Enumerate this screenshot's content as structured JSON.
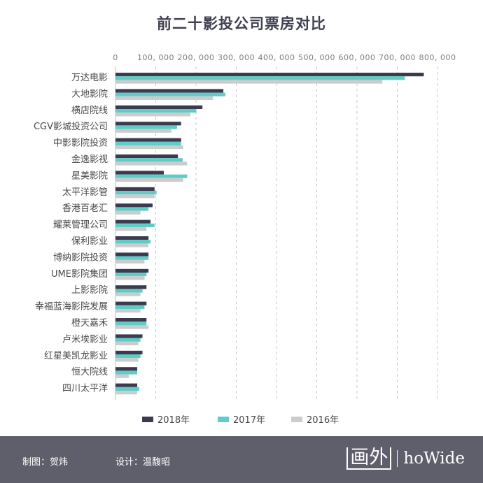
{
  "chart_data": {
    "type": "bar",
    "orientation": "horizontal",
    "title": "前二十影投公司票房对比",
    "xlabel": "",
    "ylabel": "",
    "xlim": [
      0,
      800000
    ],
    "grid": true,
    "tick_labels": [
      "0",
      "100, 000",
      "200, 000",
      "300, 000",
      "400, 000",
      "500, 000",
      "600, 000",
      "700, 000",
      "800, 000"
    ],
    "tick_values": [
      0,
      100000,
      200000,
      300000,
      400000,
      500000,
      600000,
      700000,
      800000
    ],
    "categories": [
      "万达电影",
      "大地影院",
      "横店院线",
      "CGV影城投资公司",
      "中影影院投资",
      "金逸影视",
      "星美影院",
      "太平洋影管",
      "香港百老汇",
      "耀莱管理公司",
      "保利影业",
      "博纳影院投资",
      "UME影院集团",
      "上影影院",
      "幸福蓝海影院发展",
      "橙天嘉禾",
      "卢米埃影业",
      "红星美凯龙影业",
      "恒大院线",
      "四川太平洋"
    ],
    "series": [
      {
        "name": "2018年",
        "color": "#3b3b4f",
        "values": [
          766000,
          268000,
          216000,
          163000,
          163000,
          155000,
          120000,
          97000,
          92000,
          87000,
          82000,
          82000,
          82000,
          77000,
          77000,
          77000,
          67000,
          67000,
          54000,
          54000
        ]
      },
      {
        "name": "2017年",
        "color": "#5fcdc5",
        "values": [
          719000,
          273000,
          201000,
          153000,
          163000,
          167000,
          178000,
          102000,
          82000,
          97000,
          87000,
          82000,
          77000,
          67000,
          72000,
          77000,
          62000,
          62000,
          54000,
          59000
        ]
      },
      {
        "name": "2016年",
        "color": "#cccccc",
        "values": [
          663000,
          242000,
          186000,
          139000,
          168000,
          178000,
          168000,
          97000,
          62000,
          77000,
          82000,
          72000,
          72000,
          62000,
          62000,
          82000,
          57000,
          57000,
          33000,
          54000
        ]
      }
    ],
    "legend_position": "bottom"
  },
  "footer": {
    "maker": "制图：贺炜",
    "designer": "设计：温馥昭",
    "brand_cn": "画外",
    "brand_en": "hoWide"
  }
}
